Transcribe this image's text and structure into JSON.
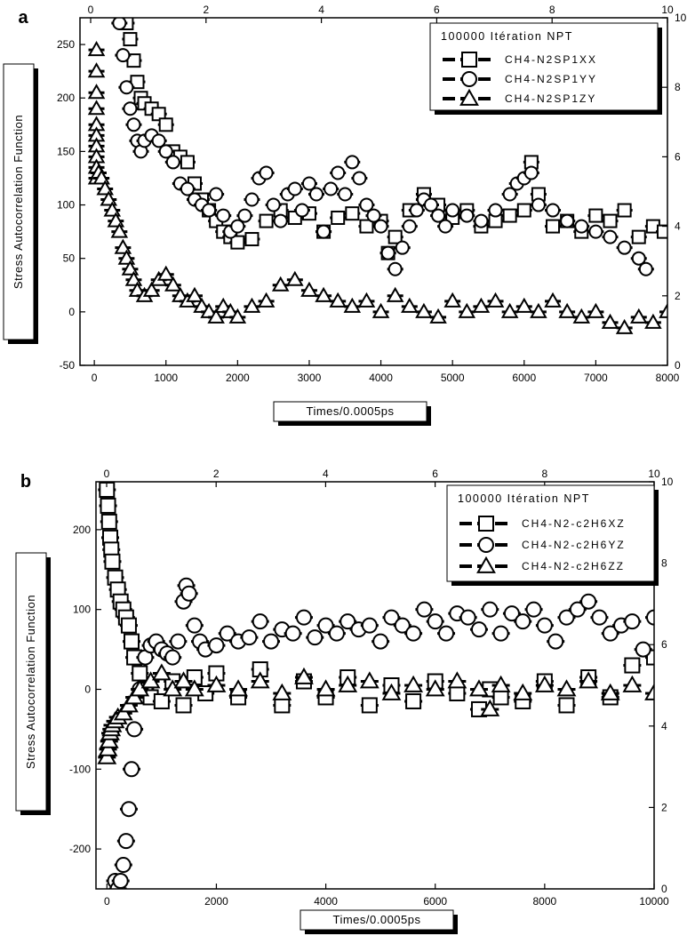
{
  "chart_data": [
    {
      "panel_label": "a",
      "type": "scatter",
      "xlabel": "Times/0.0005ps",
      "ylabel": "Stress  Autocorrelation  Function",
      "xlim": [
        -200,
        8000
      ],
      "ylim": [
        -50,
        275
      ],
      "x_ticks": [
        0,
        1000,
        2000,
        3000,
        4000,
        5000,
        6000,
        7000,
        8000
      ],
      "y_ticks": [
        -50,
        0,
        50,
        100,
        150,
        200,
        250
      ],
      "top_ticks": [
        0,
        2,
        4,
        6,
        8,
        10
      ],
      "right_ticks": [
        0,
        2,
        4,
        6,
        8,
        10
      ],
      "grid": false,
      "legend_position": "top-right",
      "legend_title": "100000 Itération NPT",
      "series": [
        {
          "name": "CH4-N2SP1XX",
          "marker": "square",
          "x": [
            450,
            500,
            550,
            600,
            650,
            700,
            800,
            900,
            1000,
            1100,
            1200,
            1300,
            1400,
            1500,
            1600,
            1700,
            1800,
            1900,
            2000,
            2200,
            2400,
            2600,
            2800,
            3000,
            3200,
            3400,
            3600,
            3800,
            4000,
            4100,
            4200,
            4400,
            4600,
            4800,
            5000,
            5200,
            5400,
            5600,
            5800,
            6000,
            6100,
            6200,
            6400,
            6600,
            6800,
            7000,
            7200,
            7400,
            7600,
            7800,
            7950
          ],
          "y": [
            270,
            255,
            235,
            215,
            200,
            195,
            190,
            185,
            175,
            150,
            145,
            140,
            120,
            105,
            95,
            85,
            75,
            70,
            65,
            68,
            85,
            95,
            88,
            92,
            75,
            88,
            92,
            80,
            85,
            55,
            70,
            95,
            110,
            100,
            88,
            95,
            80,
            85,
            90,
            95,
            140,
            110,
            80,
            85,
            75,
            90,
            85,
            95,
            70,
            80,
            75
          ]
        },
        {
          "name": "CH4-N2SP1YY",
          "marker": "circle",
          "x": [
            350,
            400,
            450,
            500,
            550,
            600,
            650,
            700,
            800,
            900,
            1000,
            1100,
            1200,
            1300,
            1400,
            1500,
            1600,
            1700,
            1800,
            1900,
            2000,
            2100,
            2200,
            2300,
            2400,
            2500,
            2600,
            2700,
            2800,
            2900,
            3000,
            3100,
            3200,
            3300,
            3400,
            3500,
            3600,
            3700,
            3800,
            3900,
            4000,
            4100,
            4200,
            4300,
            4400,
            4500,
            4600,
            4700,
            4800,
            4900,
            5000,
            5200,
            5400,
            5600,
            5800,
            5900,
            6000,
            6100,
            6200,
            6400,
            6600,
            6800,
            7000,
            7200,
            7400,
            7600,
            7700
          ],
          "y": [
            270,
            240,
            210,
            190,
            175,
            160,
            150,
            160,
            165,
            160,
            150,
            140,
            120,
            115,
            105,
            100,
            95,
            110,
            90,
            75,
            80,
            90,
            105,
            125,
            130,
            100,
            85,
            110,
            115,
            95,
            120,
            110,
            75,
            115,
            130,
            110,
            140,
            125,
            100,
            90,
            80,
            55,
            40,
            60,
            80,
            95,
            105,
            100,
            90,
            80,
            95,
            90,
            85,
            95,
            110,
            120,
            125,
            130,
            100,
            95,
            85,
            80,
            75,
            70,
            60,
            50,
            40
          ]
        },
        {
          "name": "CH4-N2SP1ZY",
          "marker": "triangle",
          "x": [
            30,
            30,
            30,
            30,
            30,
            30,
            30,
            30,
            30,
            30,
            60,
            100,
            150,
            200,
            250,
            300,
            350,
            400,
            450,
            500,
            550,
            600,
            700,
            800,
            900,
            1000,
            1100,
            1200,
            1300,
            1400,
            1500,
            1600,
            1700,
            1800,
            1900,
            2000,
            2200,
            2400,
            2600,
            2800,
            3000,
            3200,
            3400,
            3600,
            3800,
            4000,
            4200,
            4400,
            4600,
            4800,
            5000,
            5200,
            5400,
            5600,
            5800,
            6000,
            6200,
            6400,
            6600,
            6800,
            7000,
            7200,
            7400,
            7600,
            7800,
            8000
          ],
          "y": [
            245,
            225,
            205,
            190,
            175,
            165,
            155,
            145,
            135,
            125,
            130,
            125,
            115,
            105,
            95,
            85,
            75,
            60,
            50,
            40,
            30,
            20,
            15,
            20,
            30,
            35,
            25,
            15,
            10,
            15,
            5,
            0,
            -5,
            5,
            0,
            -5,
            5,
            10,
            25,
            30,
            20,
            15,
            10,
            5,
            10,
            0,
            15,
            5,
            0,
            -5,
            10,
            0,
            5,
            10,
            0,
            5,
            0,
            10,
            0,
            -5,
            0,
            -10,
            -15,
            -5,
            -10,
            0
          ]
        }
      ]
    },
    {
      "panel_label": "b",
      "type": "scatter",
      "xlabel": "Times/0.0005ps",
      "ylabel": "Stress  Autocorrelation  Function",
      "xlim": [
        -200,
        10000
      ],
      "ylim": [
        -250,
        260
      ],
      "x_ticks": [
        0,
        2000,
        4000,
        6000,
        8000,
        10000
      ],
      "y_ticks": [
        -200,
        -100,
        0,
        100,
        200
      ],
      "top_ticks": [
        0,
        2,
        4,
        6,
        8,
        10
      ],
      "right_ticks": [
        0,
        2,
        4,
        6,
        8,
        10
      ],
      "grid": false,
      "legend_position": "top-right",
      "legend_title": "100000 Itération NPT",
      "series": [
        {
          "name": "CH4-N2-c2H6XZ",
          "marker": "square",
          "x": [
            0,
            20,
            40,
            60,
            80,
            100,
            150,
            200,
            250,
            300,
            350,
            400,
            450,
            500,
            600,
            700,
            800,
            1000,
            1200,
            1400,
            1600,
            1800,
            2000,
            2400,
            2800,
            3200,
            3600,
            4000,
            4400,
            4800,
            5200,
            5600,
            6000,
            6400,
            6800,
            7000,
            7200,
            7600,
            8000,
            8400,
            8800,
            9200,
            9600,
            10000
          ],
          "y": [
            250,
            230,
            210,
            190,
            175,
            160,
            140,
            125,
            110,
            100,
            90,
            80,
            60,
            40,
            20,
            0,
            -10,
            -15,
            10,
            -20,
            15,
            -5,
            20,
            -10,
            25,
            -20,
            10,
            -10,
            15,
            -20,
            5,
            -15,
            10,
            -5,
            -25,
            0,
            -10,
            -15,
            10,
            -20,
            15,
            -10,
            30,
            40
          ]
        },
        {
          "name": "CH4-N2-c2H6YZ",
          "marker": "circle",
          "x": [
            150,
            200,
            250,
            300,
            350,
            400,
            450,
            500,
            600,
            700,
            800,
            900,
            1000,
            1100,
            1200,
            1300,
            1400,
            1450,
            1500,
            1600,
            1700,
            1800,
            2000,
            2200,
            2400,
            2600,
            2800,
            3000,
            3200,
            3400,
            3600,
            3800,
            4000,
            4200,
            4400,
            4600,
            4800,
            5000,
            5200,
            5400,
            5600,
            5800,
            6000,
            6200,
            6400,
            6600,
            6800,
            7000,
            7200,
            7400,
            7600,
            7800,
            8000,
            8200,
            8400,
            8600,
            8800,
            9000,
            9200,
            9400,
            9600,
            9800,
            10000
          ],
          "y": [
            -240,
            -250,
            -240,
            -220,
            -190,
            -150,
            -100,
            -50,
            0,
            40,
            55,
            60,
            50,
            45,
            40,
            60,
            110,
            130,
            120,
            80,
            60,
            50,
            55,
            70,
            60,
            65,
            85,
            60,
            75,
            70,
            90,
            65,
            80,
            70,
            85,
            75,
            80,
            60,
            90,
            80,
            70,
            100,
            85,
            70,
            95,
            90,
            75,
            100,
            70,
            95,
            85,
            100,
            80,
            60,
            90,
            100,
            110,
            90,
            70,
            80,
            85,
            50,
            90
          ]
        },
        {
          "name": "CH4-N2-c2H6ZZ",
          "marker": "triangle",
          "x": [
            0,
            20,
            40,
            60,
            80,
            100,
            150,
            200,
            300,
            400,
            500,
            600,
            800,
            1000,
            1200,
            1400,
            1600,
            2000,
            2400,
            2800,
            3200,
            3600,
            4000,
            4400,
            4800,
            5200,
            5600,
            6000,
            6400,
            6800,
            7000,
            7200,
            7600,
            8000,
            8400,
            8800,
            9200,
            9600,
            10000
          ],
          "y": [
            -85,
            -75,
            -65,
            -55,
            -50,
            -45,
            -40,
            -35,
            -30,
            -20,
            -10,
            0,
            10,
            20,
            0,
            10,
            0,
            5,
            0,
            10,
            -5,
            15,
            0,
            5,
            10,
            -5,
            5,
            0,
            10,
            0,
            -25,
            5,
            -5,
            5,
            0,
            10,
            -5,
            5,
            -5
          ]
        }
      ]
    }
  ]
}
